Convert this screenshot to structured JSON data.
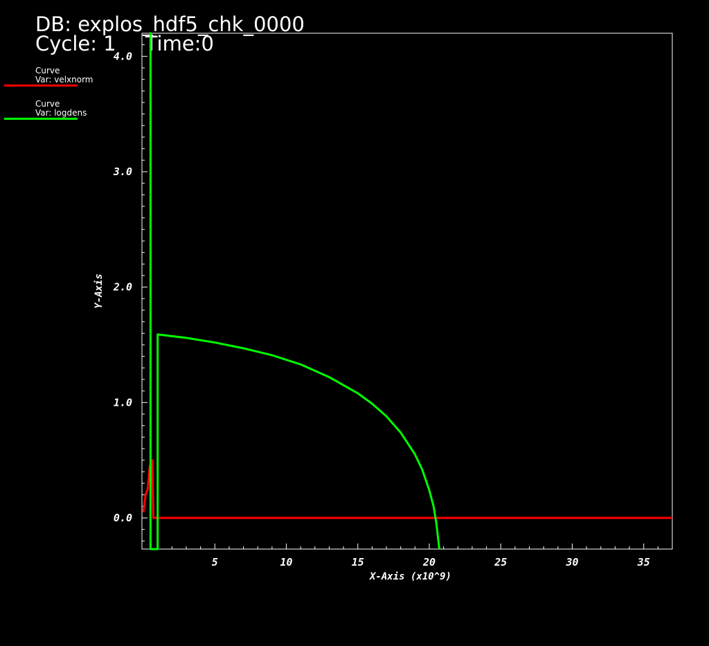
{
  "header": {
    "db_label": "DB: explos_hdf5_chk_0000",
    "cycle_label": "Cycle: 1",
    "time_label": "Time:0"
  },
  "legend": [
    {
      "title": "Curve",
      "var": "Var: velxnorm",
      "color": "#ff0000"
    },
    {
      "title": "Curve",
      "var": "Var: logdens",
      "color": "#00ff00"
    }
  ],
  "chart_data": {
    "type": "line",
    "title": "",
    "xlabel": "X-Axis (x10^9)",
    "ylabel": "Y-Axis",
    "xlim": [
      -0.1,
      37
    ],
    "ylim": [
      -0.27,
      4.2
    ],
    "xticks": [
      5,
      10,
      15,
      20,
      25,
      30,
      35
    ],
    "xtick_labels": [
      "5",
      "10",
      "15",
      "20",
      "25",
      "30",
      "35"
    ],
    "yticks": [
      0.0,
      1.0,
      2.0,
      3.0,
      4.0
    ],
    "ytick_labels": [
      "0.0",
      "1.0",
      "2.0",
      "3.0",
      "4.0"
    ],
    "grid": false,
    "legend_position": "top-left",
    "series": [
      {
        "name": "velxnorm",
        "color": "#ff0000",
        "points": [
          [
            0.0,
            0.05
          ],
          [
            0.15,
            0.2
          ],
          [
            0.3,
            0.25
          ],
          [
            0.45,
            0.45
          ],
          [
            0.55,
            0.3
          ],
          [
            0.62,
            0.5
          ],
          [
            0.7,
            0.0
          ],
          [
            1.0,
            0.0
          ],
          [
            37.0,
            0.0
          ]
        ]
      },
      {
        "name": "logdens",
        "color": "#00ff00",
        "points": [
          [
            0.5,
            -0.27
          ],
          [
            0.5,
            4.2
          ],
          [
            0.5,
            4.2
          ],
          [
            0.5,
            -0.27
          ],
          [
            1.0,
            -0.27
          ],
          [
            1.0,
            1.58
          ],
          [
            1.0,
            1.59
          ],
          [
            3,
            1.56
          ],
          [
            5,
            1.52
          ],
          [
            7,
            1.47
          ],
          [
            9,
            1.41
          ],
          [
            11,
            1.33
          ],
          [
            13,
            1.22
          ],
          [
            15,
            1.08
          ],
          [
            16,
            0.99
          ],
          [
            17,
            0.88
          ],
          [
            18,
            0.74
          ],
          [
            19,
            0.55
          ],
          [
            19.5,
            0.42
          ],
          [
            20.0,
            0.24
          ],
          [
            20.3,
            0.1
          ],
          [
            20.5,
            -0.05
          ],
          [
            20.7,
            -0.27
          ]
        ]
      }
    ]
  }
}
